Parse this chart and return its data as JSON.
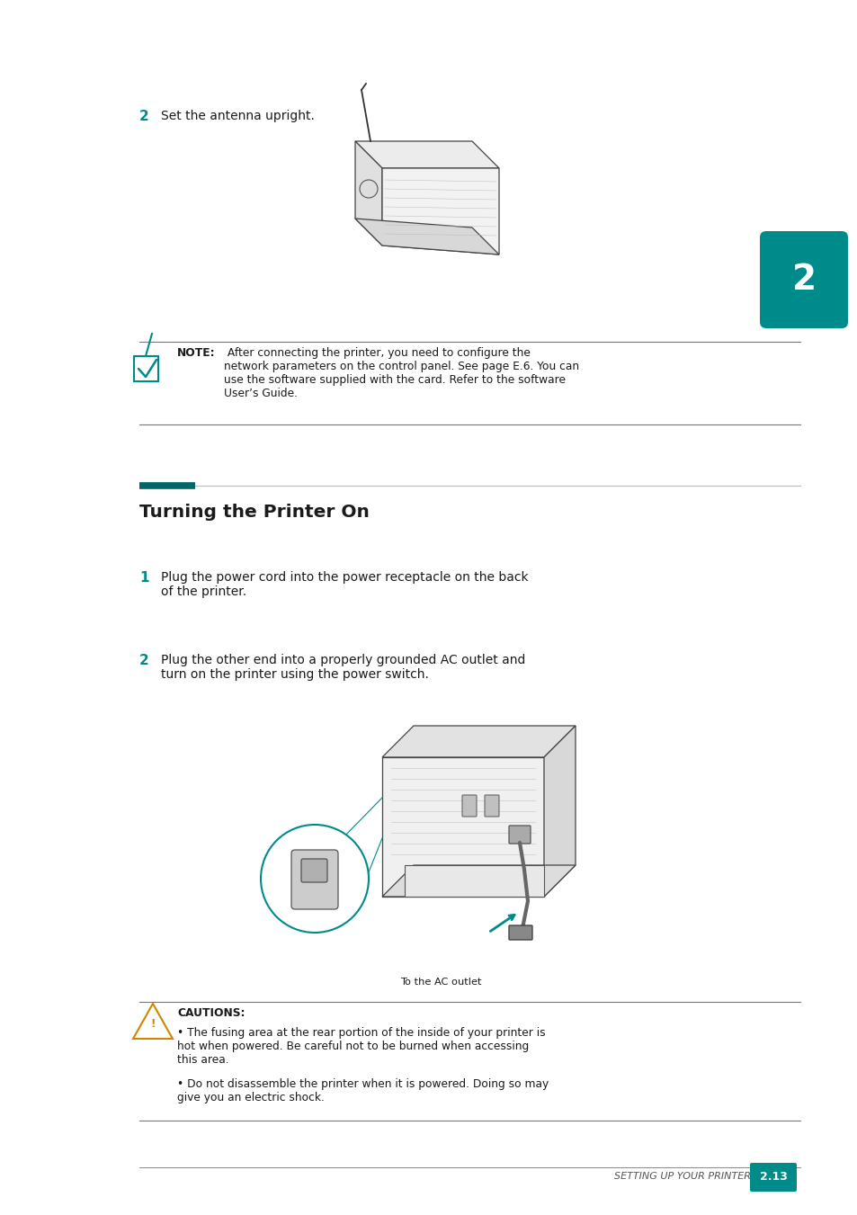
{
  "bg_color": "#ffffff",
  "teal": "#008B8B",
  "teal_dark": "#006666",
  "black": "#1a1a1a",
  "step2_top": "Set the antenna upright.",
  "note_bold": "NOTE:",
  "note_body": " After connecting the printer, you need to configure the\nnetwork parameters on the control panel. See page E.6. You can\nuse the software supplied with the card. Refer to the software\nUser’s Guide.",
  "section_title": "Turning the Printer On",
  "s1_num": "1",
  "s1_text": "Plug the power cord into the power receptacle on the back\nof the printer.",
  "s2_num": "2",
  "s2_text": "Plug the other end into a properly grounded AC outlet and\nturn on the printer using the power switch.",
  "ac_label": "To the AC outlet",
  "caution_head": "CAUTIONS:",
  "caution1": "The fusing area at the rear portion of the inside of your printer is\nhot when powered. Be careful not to be burned when accessing\nthis area.",
  "caution2": "Do not disassemble the printer when it is powered. Doing so may\ngive you an electric shock.",
  "footer_text": "SETTING UP YOUR PRINTER",
  "footer_page": "2.13",
  "chapter": "2",
  "ML": 1.55,
  "MR": 8.9
}
